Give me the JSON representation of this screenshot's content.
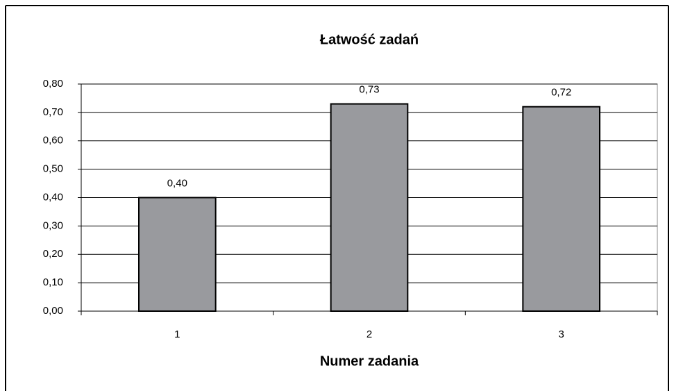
{
  "chart_data": {
    "type": "bar",
    "title": "Łatwość zadań",
    "x_label": "Numer zadania",
    "categories": [
      "1",
      "2",
      "3"
    ],
    "values": [
      0.4,
      0.73,
      0.72
    ],
    "value_labels": [
      "0,40",
      "0,73",
      "0,72"
    ],
    "color": "#999a9e",
    "ylim": [
      0,
      0.8
    ],
    "yticks": [
      {
        "value": 0,
        "label": "0,00"
      },
      {
        "value": 0.1,
        "label": "0,10"
      },
      {
        "value": 0.2,
        "label": "0,20"
      },
      {
        "value": 0.3,
        "label": "0,30"
      },
      {
        "value": 0.4,
        "label": "0,40"
      },
      {
        "value": 0.5,
        "label": "0,50"
      },
      {
        "value": 0.6,
        "label": "0,60"
      },
      {
        "value": 0.7,
        "label": "0,70"
      },
      {
        "value": 0.8,
        "label": "0,80"
      }
    ],
    "grid": true
  }
}
